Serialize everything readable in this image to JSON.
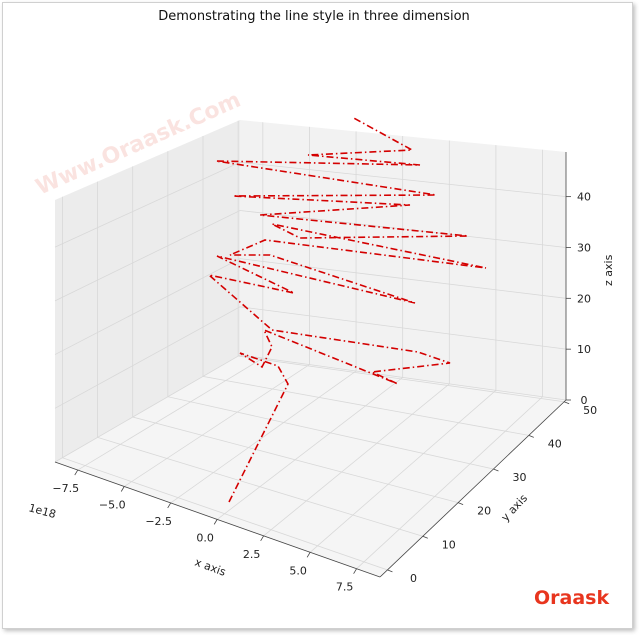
{
  "chart_data": {
    "type": "line",
    "title": "Demonstrating the line style in three dimension",
    "xlabel": "x axis",
    "ylabel": "y axis",
    "zlabel": "z axis",
    "x_offset_text": "1e18",
    "x_ticks": [
      "−7.5",
      "−5.0",
      "−2.5",
      "0.0",
      "2.5",
      "5.0",
      "7.5"
    ],
    "y_ticks": [
      "0",
      "10",
      "20",
      "30",
      "40",
      "50"
    ],
    "z_ticks": [
      "0",
      "10",
      "20",
      "30",
      "40"
    ],
    "color": "#d40000",
    "linestyle": "dashdot",
    "grid": true
  },
  "watermark": "Www.Oraask.Com",
  "logo": "Oraask"
}
